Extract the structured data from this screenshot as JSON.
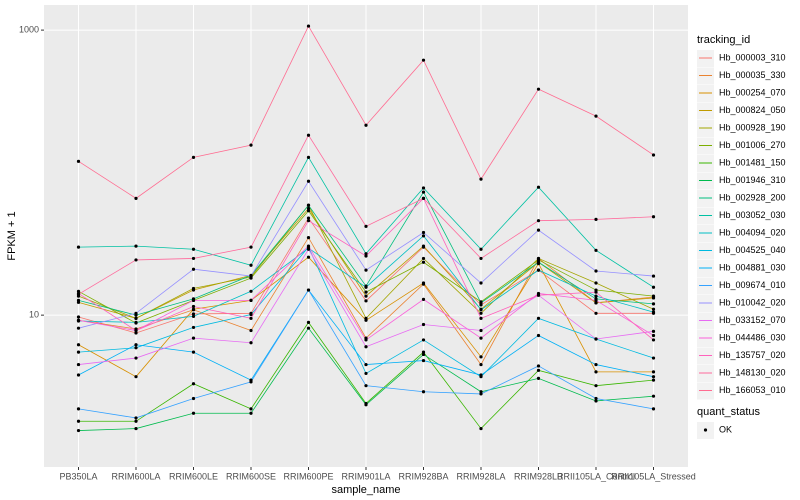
{
  "chart_data": {
    "type": "line",
    "x_label": "sample_name",
    "y_label": "FPKM + 1",
    "categories": [
      "PB350LA",
      "RRIM600LA",
      "RRIM600LE",
      "RRIM600SE",
      "RRIM600PE",
      "RRIM901LA",
      "RRIM928BA",
      "RRIM928LA",
      "RRIM928LB",
      "RRII105LA_Control",
      "RRII105LA_Stressed"
    ],
    "log_y": true,
    "ylim": [
      0.86,
      1500
    ],
    "yticks": [
      10,
      1000
    ],
    "grid": true,
    "legend_title": "tracking_id",
    "legend_position": "right",
    "point_color": "#000000",
    "point_legend": {
      "title": "quant_status",
      "labels": [
        "OK"
      ]
    },
    "series": [
      {
        "name": "Hb_000003_310",
        "color": "#F8766D",
        "values": [
          9.7,
          7.5,
          10.2,
          10.3,
          48,
          12.6,
          30,
          11.8,
          20.7,
          10.3,
          10.3
        ]
      },
      {
        "name": "Hb_000035_330",
        "color": "#EA8331",
        "values": [
          9.2,
          8,
          10.9,
          7.8,
          35,
          6.9,
          16.5,
          4.5,
          25,
          12.2,
          13.4
        ]
      },
      {
        "name": "Hb_000254_070",
        "color": "#D89000",
        "values": [
          6.2,
          3.7,
          11,
          12.7,
          25.5,
          9.2,
          16.8,
          5.1,
          23,
          4,
          4
        ]
      },
      {
        "name": "Hb_000824_050",
        "color": "#C09B00",
        "values": [
          12.3,
          9.5,
          15,
          19,
          56,
          13.6,
          30.5,
          11,
          23.5,
          12.2,
          13.2
        ]
      },
      {
        "name": "Hb_000928_190",
        "color": "#A3A500",
        "values": [
          13.6,
          9.5,
          15.4,
          18.5,
          59,
          9.5,
          25,
          10.3,
          25,
          16.8,
          11
        ]
      },
      {
        "name": "Hb_001006_270",
        "color": "#7CAE00",
        "values": [
          14.7,
          8.8,
          12.7,
          18.2,
          54,
          14.5,
          23.5,
          12.4,
          24.4,
          15,
          13.6
        ]
      },
      {
        "name": "Hb_001481_150",
        "color": "#39B600",
        "values": [
          1.8,
          1.8,
          3.3,
          2.2,
          8.9,
          2.4,
          5.5,
          1.6,
          4.1,
          3.2,
          3.5
        ]
      },
      {
        "name": "Hb_001946_310",
        "color": "#00BB4E",
        "values": [
          1.55,
          1.6,
          2.05,
          2.05,
          8.1,
          2.35,
          5.3,
          2.9,
          3.6,
          2.5,
          2.7
        ]
      },
      {
        "name": "Hb_002928_200",
        "color": "#00BF7D",
        "values": [
          12.7,
          10,
          13,
          19,
          59,
          16,
          73,
          12.2,
          23.5,
          13,
          12
        ]
      },
      {
        "name": "Hb_003052_030",
        "color": "#00C1A3",
        "values": [
          30,
          30.5,
          29,
          22.4,
          128,
          27,
          78,
          29,
          79,
          28.5,
          15.7
        ]
      },
      {
        "name": "Hb_004094_020",
        "color": "#00BFC4",
        "values": [
          9.1,
          8.9,
          9.8,
          14.7,
          29.5,
          15.7,
          36,
          10.9,
          20.7,
          13.6,
          10.5
        ]
      },
      {
        "name": "Hb_004525_040",
        "color": "#00BAE0",
        "values": [
          5.5,
          5.9,
          8.2,
          10.1,
          30,
          3.9,
          6.7,
          3.7,
          9.5,
          6.8,
          5
        ]
      },
      {
        "name": "Hb_004881_030",
        "color": "#00B0F6",
        "values": [
          3.8,
          6.2,
          5.5,
          3.5,
          15,
          4.5,
          4.8,
          3.8,
          7.2,
          4.5,
          3.7
        ]
      },
      {
        "name": "Hb_009674_010",
        "color": "#35A2FF",
        "values": [
          2.2,
          1.9,
          2.6,
          3.4,
          15,
          3.2,
          2.9,
          2.8,
          4.4,
          2.6,
          2.2
        ]
      },
      {
        "name": "Hb_010042_020",
        "color": "#9590FF",
        "values": [
          8.1,
          10.3,
          21,
          18.8,
          87,
          20.7,
          38,
          16.8,
          39.5,
          20.4,
          18.8
        ]
      },
      {
        "name": "Hb_033152_070",
        "color": "#E76BF3",
        "values": [
          4.5,
          5,
          6.9,
          6.4,
          29,
          6,
          8.6,
          7.8,
          13.8,
          6.8,
          7.7
        ]
      },
      {
        "name": "Hb_044486_030",
        "color": "#FA62DB",
        "values": [
          9.2,
          7.8,
          12.7,
          12.7,
          30.5,
          6.7,
          12.9,
          6.9,
          14.2,
          12.7,
          7.2
        ]
      },
      {
        "name": "Hb_135757_020",
        "color": "#FF62BC",
        "values": [
          14.2,
          7.8,
          11.5,
          9.5,
          46,
          26,
          66,
          9.5,
          13.8,
          14.5,
          6.7
        ]
      },
      {
        "name": "Hb_148130_020",
        "color": "#FF6A9C",
        "values": [
          14,
          24.4,
          25,
          30,
          183,
          42,
          66,
          25,
          46,
          47,
          49
        ]
      },
      {
        "name": "Hb_166053_010",
        "color": "#FF6C91",
        "values": [
          120,
          66,
          128,
          156,
          1067,
          215,
          615,
          90,
          385,
          249,
          133
        ]
      }
    ]
  }
}
